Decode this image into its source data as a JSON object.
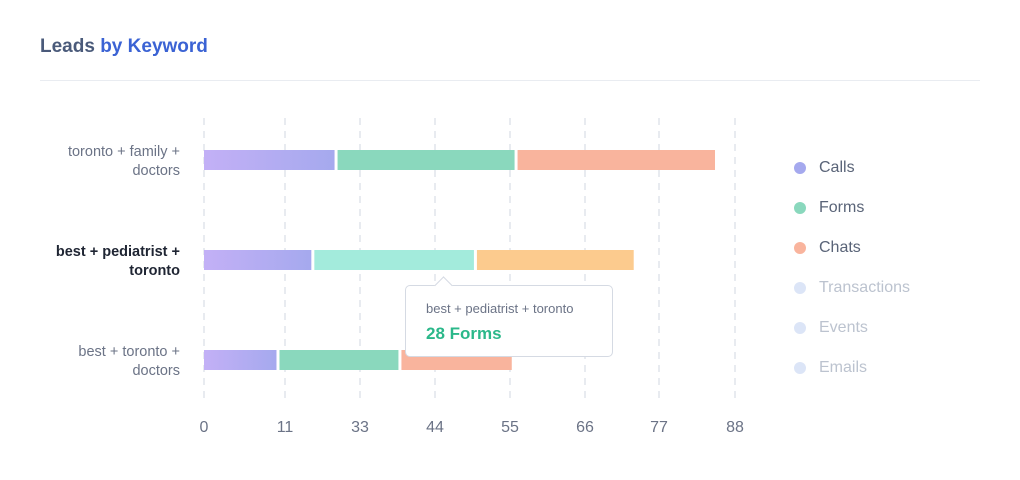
{
  "header": {
    "title_part1": "Leads",
    "title_part2": "by Keyword"
  },
  "chart_data": {
    "type": "bar",
    "orientation": "horizontal",
    "stacked": true,
    "categories": [
      "toronto + family + doctors",
      "best + pediatrist + toronto",
      "best + toronto + doctors"
    ],
    "series": [
      {
        "name": "Calls",
        "values": [
          23,
          19,
          13
        ]
      },
      {
        "name": "Forms",
        "values": [
          31,
          28,
          21
        ]
      },
      {
        "name": "Chats",
        "values": [
          34,
          27,
          19
        ]
      }
    ],
    "xticks": [
      "0",
      "11",
      "33",
      "44",
      "55",
      "66",
      "77",
      "88"
    ],
    "highlighted_category": 1,
    "grid": true
  },
  "legend": {
    "position": "right",
    "items": [
      {
        "label": "Calls",
        "color": "#a5a9ee",
        "active": true
      },
      {
        "label": "Forms",
        "color": "#8ad8bd",
        "active": true
      },
      {
        "label": "Chats",
        "color": "#f9b49d",
        "active": true
      },
      {
        "label": "Transactions",
        "color": "#dce5f7",
        "active": false
      },
      {
        "label": "Events",
        "color": "#dce5f7",
        "active": false
      },
      {
        "label": "Emails",
        "color": "#dce5f7",
        "active": false
      }
    ]
  },
  "colors": {
    "calls_gradient": [
      "#c3b0f6",
      "#a5a9ee"
    ],
    "forms": "#8ad8bd",
    "forms_highlight": "#a3ebdc",
    "chats": "#f9b49d",
    "chats_highlight": "#fccb8e",
    "grid": "#e8ebf0",
    "tick_text": "#6b7386"
  },
  "tooltip": {
    "keyword": "best + pediatrist + toronto",
    "value_text": "28 Forms"
  }
}
